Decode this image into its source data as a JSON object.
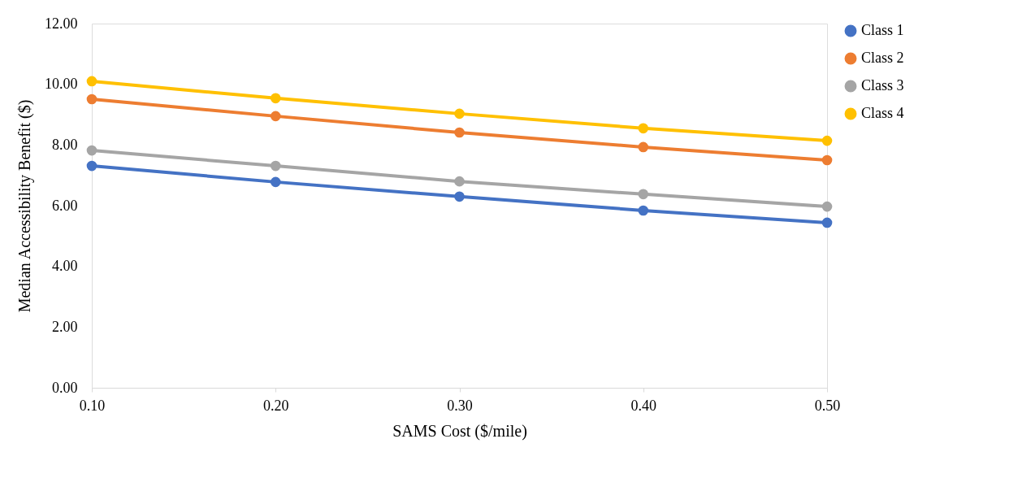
{
  "chart_data": {
    "type": "line",
    "xlabel": "SAMS Cost ($/mile)",
    "ylabel": "Median Accessibility Benefit ($)",
    "categories": [
      "0.10",
      "0.20",
      "0.30",
      "0.40",
      "0.50"
    ],
    "series": [
      {
        "name": "Class 1",
        "color": "#4472c4",
        "values": [
          7.31,
          6.78,
          6.3,
          5.84,
          5.44
        ]
      },
      {
        "name": "Class 2",
        "color": "#ed7d31",
        "values": [
          9.51,
          8.95,
          8.41,
          7.93,
          7.5
        ]
      },
      {
        "name": "Class 3",
        "color": "#a5a5a5",
        "values": [
          7.82,
          7.31,
          6.8,
          6.38,
          5.97
        ]
      },
      {
        "name": "Class 4",
        "color": "#ffc000",
        "values": [
          10.1,
          9.54,
          9.03,
          8.55,
          8.14
        ]
      }
    ],
    "ylim": [
      0,
      12
    ],
    "yticks": [
      {
        "value": 0,
        "label": "0.00"
      },
      {
        "value": 2,
        "label": "2.00"
      },
      {
        "value": 4,
        "label": "4.00"
      },
      {
        "value": 6,
        "label": "6.00"
      },
      {
        "value": 8,
        "label": "8.00"
      },
      {
        "value": 10,
        "label": "10.00"
      },
      {
        "value": 12,
        "label": "12.00"
      }
    ],
    "grid": false,
    "legend": "right",
    "marker": "circle",
    "line_style": "solid"
  }
}
